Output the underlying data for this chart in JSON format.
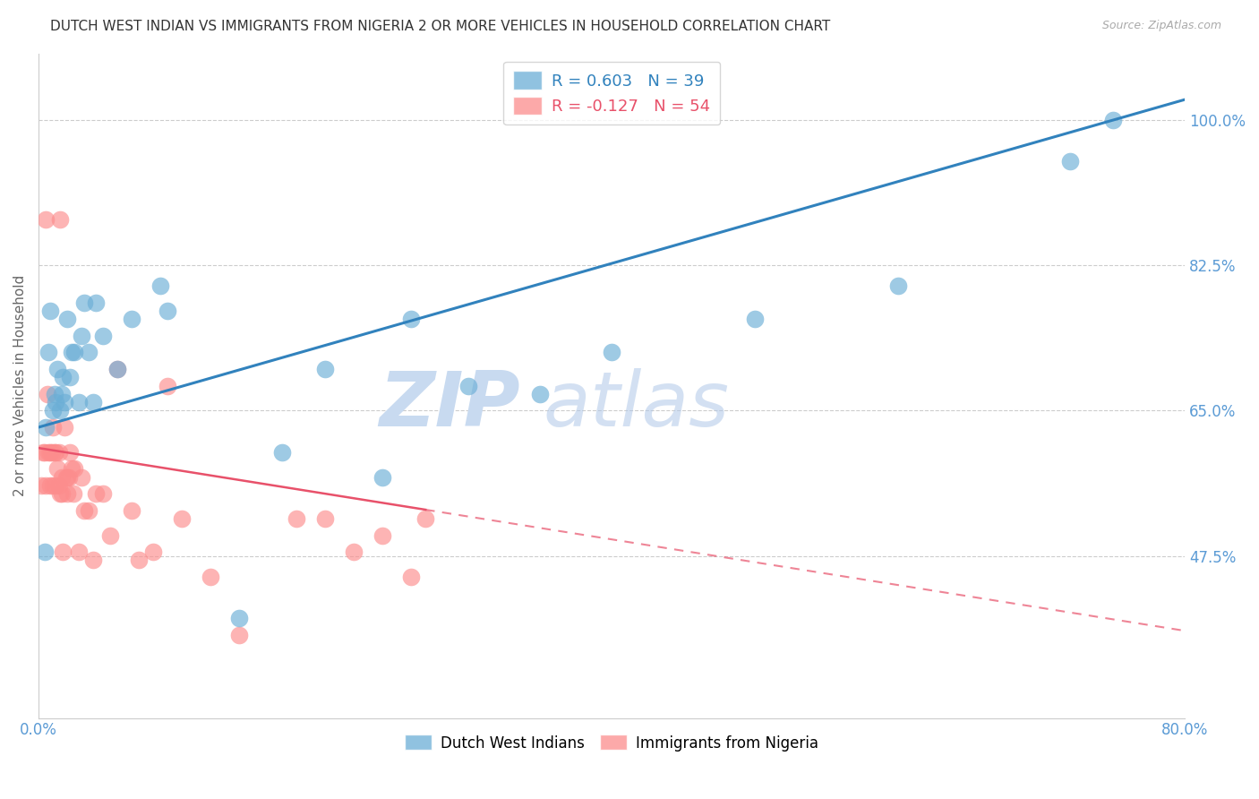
{
  "title": "DUTCH WEST INDIAN VS IMMIGRANTS FROM NIGERIA 2 OR MORE VEHICLES IN HOUSEHOLD CORRELATION CHART",
  "source": "Source: ZipAtlas.com",
  "ylabel": "2 or more Vehicles in Household",
  "blue_label": "Dutch West Indians",
  "pink_label": "Immigrants from Nigeria",
  "blue_R": "0.603",
  "blue_N": "39",
  "pink_R": "-0.127",
  "pink_N": "54",
  "blue_color": "#6baed6",
  "pink_color": "#fc8d8d",
  "blue_line_color": "#3182bd",
  "pink_line_color": "#e8516a",
  "x_range": [
    0.0,
    80.0
  ],
  "y_range": [
    28.0,
    108.0
  ],
  "ytick_vals": [
    47.5,
    65.0,
    82.5,
    100.0
  ],
  "ytick_labels": [
    "47.5%",
    "65.0%",
    "82.5%",
    "100.0%"
  ],
  "blue_intercept": 63.0,
  "blue_slope": 0.493,
  "pink_intercept": 60.5,
  "pink_slope": -0.275,
  "pink_solid_end": 27.0,
  "blue_x": [
    0.4,
    0.5,
    0.7,
    0.8,
    1.0,
    1.1,
    1.2,
    1.3,
    1.5,
    1.6,
    1.7,
    1.8,
    2.0,
    2.2,
    2.3,
    2.5,
    2.8,
    3.0,
    3.2,
    3.5,
    3.8,
    4.0,
    4.5,
    5.5,
    6.5,
    8.5,
    9.0,
    14.0,
    17.0,
    20.0,
    24.0,
    26.0,
    30.0,
    35.0,
    40.0,
    50.0,
    60.0,
    72.0,
    75.0
  ],
  "blue_y": [
    48.0,
    63.0,
    72.0,
    77.0,
    65.0,
    67.0,
    66.0,
    70.0,
    65.0,
    67.0,
    69.0,
    66.0,
    76.0,
    69.0,
    72.0,
    72.0,
    66.0,
    74.0,
    78.0,
    72.0,
    66.0,
    78.0,
    74.0,
    70.0,
    76.0,
    80.0,
    77.0,
    40.0,
    60.0,
    70.0,
    57.0,
    76.0,
    68.0,
    67.0,
    72.0,
    76.0,
    80.0,
    95.0,
    100.0
  ],
  "pink_x": [
    0.2,
    0.3,
    0.4,
    0.5,
    0.5,
    0.6,
    0.7,
    0.8,
    0.8,
    0.9,
    1.0,
    1.0,
    1.1,
    1.2,
    1.2,
    1.3,
    1.4,
    1.4,
    1.5,
    1.5,
    1.6,
    1.6,
    1.7,
    1.8,
    1.9,
    2.0,
    2.0,
    2.1,
    2.2,
    2.3,
    2.4,
    2.5,
    2.8,
    3.0,
    3.2,
    3.5,
    3.8,
    4.0,
    4.5,
    5.0,
    5.5,
    6.5,
    7.0,
    8.0,
    9.0,
    10.0,
    12.0,
    14.0,
    18.0,
    20.0,
    22.0,
    24.0,
    26.0,
    27.0
  ],
  "pink_y": [
    56.0,
    60.0,
    60.0,
    88.0,
    56.0,
    67.0,
    60.0,
    56.0,
    60.0,
    60.0,
    63.0,
    56.0,
    60.0,
    56.0,
    60.0,
    58.0,
    56.0,
    60.0,
    55.0,
    88.0,
    57.0,
    55.0,
    48.0,
    63.0,
    57.0,
    57.0,
    55.0,
    57.0,
    60.0,
    58.0,
    55.0,
    58.0,
    48.0,
    57.0,
    53.0,
    53.0,
    47.0,
    55.0,
    55.0,
    50.0,
    70.0,
    53.0,
    47.0,
    48.0,
    68.0,
    52.0,
    45.0,
    38.0,
    52.0,
    52.0,
    48.0,
    50.0,
    45.0,
    52.0
  ]
}
